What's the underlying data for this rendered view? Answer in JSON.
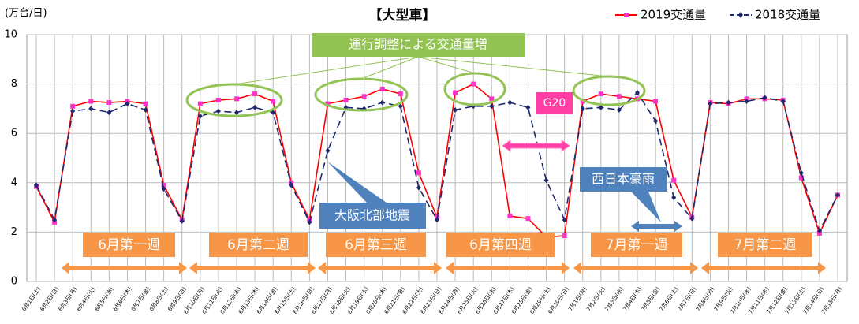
{
  "chart_data": {
    "type": "line",
    "title": "【大型車】",
    "y_unit": "(万台/日)",
    "categories": [
      "6月1日(土)",
      "6月2日(日)",
      "6月3日(月)",
      "6月4日(火)",
      "6月5日(水)",
      "6月6日(木)",
      "6月7日(金)",
      "6月8日(土)",
      "6月9日(日)",
      "6月10日(月)",
      "6月11日(火)",
      "6月12日(水)",
      "6月13日(木)",
      "6月14日(金)",
      "6月15日(土)",
      "6月16日(日)",
      "6月17日(月)",
      "6月18日(火)",
      "6月19日(水)",
      "6月20日(木)",
      "6月21日(金)",
      "6月22日(土)",
      "6月23日(日)",
      "6月24日(月)",
      "6月25日(火)",
      "6月26日(水)",
      "6月27日(木)",
      "6月28日(金)",
      "6月29日(土)",
      "6月30日(日)",
      "7月1日(月)",
      "7月2日(火)",
      "7月3日(水)",
      "7月4日(木)",
      "7月5日(金)",
      "7月6日(土)",
      "7月7日(日)",
      "7月8日(月)",
      "7月9日(火)",
      "7月10日(水)",
      "7月11日(木)",
      "7月12日(金)",
      "7月13日(土)",
      "7月14日(日)",
      "7月15日(月)"
    ],
    "series": [
      {
        "name": "2019交通量",
        "color": "#ff0000",
        "marker_color": "#ff33cc",
        "dash": false,
        "values": [
          3.85,
          2.4,
          7.1,
          7.3,
          7.25,
          7.3,
          7.2,
          3.9,
          2.5,
          7.2,
          7.35,
          7.4,
          7.6,
          7.3,
          4.0,
          2.5,
          7.2,
          7.35,
          7.5,
          7.8,
          7.6,
          4.4,
          2.6,
          7.65,
          8.0,
          7.4,
          2.65,
          2.55,
          1.8,
          1.85,
          7.3,
          7.6,
          7.5,
          7.4,
          7.3,
          4.1,
          2.6,
          7.25,
          7.2,
          7.4,
          7.4,
          7.35,
          4.2,
          1.95,
          3.5
        ]
      },
      {
        "name": "2018交通量",
        "color": "#1f2a6e",
        "marker_color": "#1f2a6e",
        "dash": true,
        "values": [
          3.9,
          2.5,
          6.9,
          7.0,
          6.85,
          7.2,
          6.95,
          3.75,
          2.45,
          6.7,
          6.9,
          6.85,
          7.05,
          6.85,
          3.9,
          2.4,
          5.3,
          7.05,
          7.0,
          7.25,
          7.1,
          3.8,
          2.5,
          6.95,
          7.1,
          7.1,
          7.25,
          7.05,
          4.1,
          2.5,
          7.0,
          7.05,
          6.95,
          7.65,
          6.5,
          3.4,
          2.55,
          7.2,
          7.25,
          7.3,
          7.45,
          7.3,
          4.4,
          2.05,
          3.5
        ]
      }
    ],
    "ylim": [
      0,
      10
    ],
    "yticks": [
      0,
      2,
      4,
      6,
      8,
      10
    ],
    "grid": true,
    "legend": "upper right",
    "annotations": {
      "callout": "運行調整による交通量増",
      "g20": "G20",
      "quake": "大阪北部地震",
      "rain": "西日本豪雨",
      "weeks": [
        "6月第一週",
        "6月第二週",
        "6月第三週",
        "6月第四週",
        "7月第一週",
        "7月第二週"
      ]
    }
  }
}
